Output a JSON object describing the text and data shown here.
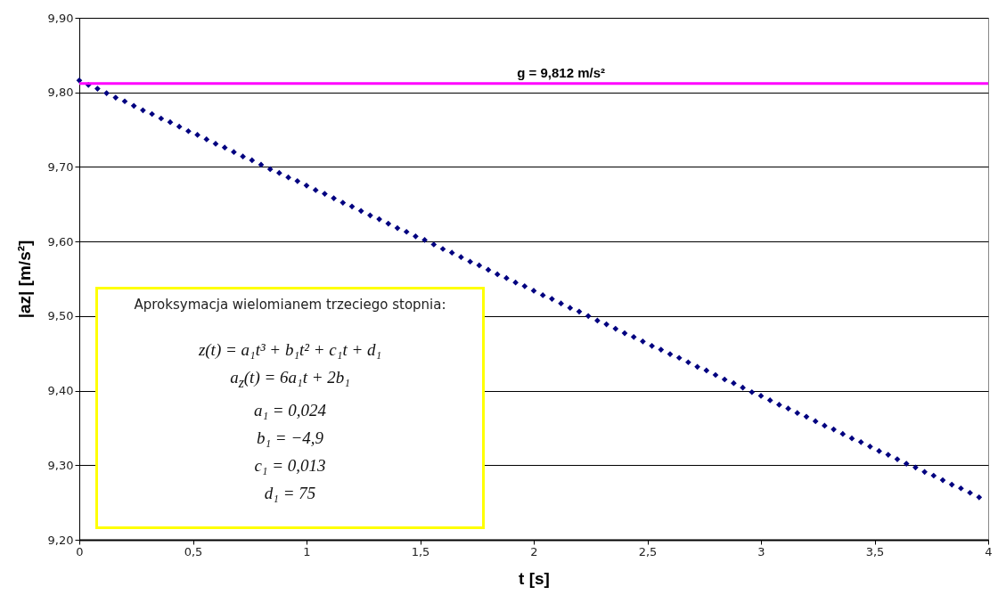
{
  "chart_data": {
    "type": "scatter",
    "xlabel": "t [s]",
    "ylabel": "|az| [m/s²]",
    "marker": "diamond",
    "grid": "y",
    "xlim": [
      0,
      4
    ],
    "xticks": [
      0,
      {
        "value": 0.5,
        "label": "0,5"
      },
      1,
      {
        "value": 1.5,
        "label": "1,5"
      },
      2,
      {
        "value": 2.5,
        "label": "2,5"
      },
      3,
      {
        "value": 3.5,
        "label": "3,5"
      },
      4
    ],
    "ylim": [
      9.2,
      9.9
    ],
    "yticks": [
      {
        "value": 9.2,
        "label": "9,20"
      },
      {
        "value": 9.3,
        "label": "9,30"
      },
      {
        "value": 9.4,
        "label": "9,40"
      },
      {
        "value": 9.5,
        "label": "9,50"
      },
      {
        "value": 9.6,
        "label": "9,60"
      },
      {
        "value": 9.7,
        "label": "9,70"
      },
      {
        "value": 9.8,
        "label": "9,80"
      },
      {
        "value": 9.9,
        "label": "9,90"
      }
    ],
    "ref_lines": [
      {
        "axis": "y",
        "value": 9.812,
        "label": "g = 9,812 m/s²",
        "color": "#ff00ff",
        "line_style": "solid"
      }
    ],
    "annotations": [
      "Aproksymacja wielomianem trzeciego stopnia:",
      "z(t) = a₁t³ + b₁t² + c₁t + d₁",
      "a$_{z}$(t) = 6a₁t + 2b₁",
      "a₁ = 0,024",
      "b₁ = −4,9",
      "c₁ = 0,013",
      "d₁ = 75"
    ],
    "x": [
      0,
      0.04,
      0.08,
      0.12,
      0.16,
      0.2,
      0.24,
      0.28,
      0.32,
      0.36,
      0.4,
      0.44,
      0.48,
      0.52,
      0.56,
      0.6,
      0.64,
      0.68,
      0.72,
      0.76,
      0.8,
      0.84,
      0.88,
      0.92,
      0.96,
      1,
      1.04,
      1.08,
      1.12,
      1.16,
      1.2,
      1.24,
      1.28,
      1.32,
      1.36,
      1.4,
      1.44,
      1.48,
      1.52,
      1.56,
      1.6,
      1.64,
      1.68,
      1.72,
      1.76,
      1.8,
      1.84,
      1.88,
      1.92,
      1.96,
      2,
      2.04,
      2.08,
      2.12,
      2.16,
      2.2,
      2.24,
      2.28,
      2.32,
      2.36,
      2.4,
      2.44,
      2.48,
      2.52,
      2.56,
      2.6,
      2.64,
      2.68,
      2.72,
      2.76,
      2.8,
      2.84,
      2.88,
      2.92,
      2.96,
      3,
      3.04,
      3.08,
      3.12,
      3.16,
      3.2,
      3.24,
      3.28,
      3.32,
      3.36,
      3.4,
      3.44,
      3.48,
      3.52,
      3.56,
      3.6,
      3.64,
      3.68,
      3.72,
      3.76,
      3.8,
      3.84,
      3.88,
      3.92,
      3.96
    ],
    "series": [
      {
        "color": "#000080",
        "values": [
          9.816,
          9.81,
          9.805,
          9.799,
          9.793,
          9.788,
          9.782,
          9.776,
          9.771,
          9.765,
          9.76,
          9.754,
          9.748,
          9.743,
          9.737,
          9.731,
          9.726,
          9.72,
          9.714,
          9.709,
          9.703,
          9.697,
          9.692,
          9.686,
          9.681,
          9.675,
          9.669,
          9.664,
          9.658,
          9.652,
          9.647,
          9.641,
          9.635,
          9.63,
          9.624,
          9.618,
          9.613,
          9.607,
          9.602,
          9.596,
          9.59,
          9.585,
          9.579,
          9.573,
          9.568,
          9.562,
          9.556,
          9.551,
          9.545,
          9.54,
          9.534,
          9.528,
          9.523,
          9.517,
          9.511,
          9.506,
          9.5,
          9.494,
          9.489,
          9.483,
          9.477,
          9.472,
          9.466,
          9.46,
          9.455,
          9.449,
          9.444,
          9.438,
          9.432,
          9.427,
          9.421,
          9.415,
          9.41,
          9.404,
          9.398,
          9.393,
          9.387,
          9.381,
          9.376,
          9.37,
          9.365,
          9.359,
          9.353,
          9.348,
          9.342,
          9.336,
          9.331,
          9.325,
          9.319,
          9.314,
          9.308,
          9.302,
          9.297,
          9.291,
          9.286,
          9.28,
          9.274,
          9.269,
          9.263,
          9.257
        ]
      }
    ]
  }
}
